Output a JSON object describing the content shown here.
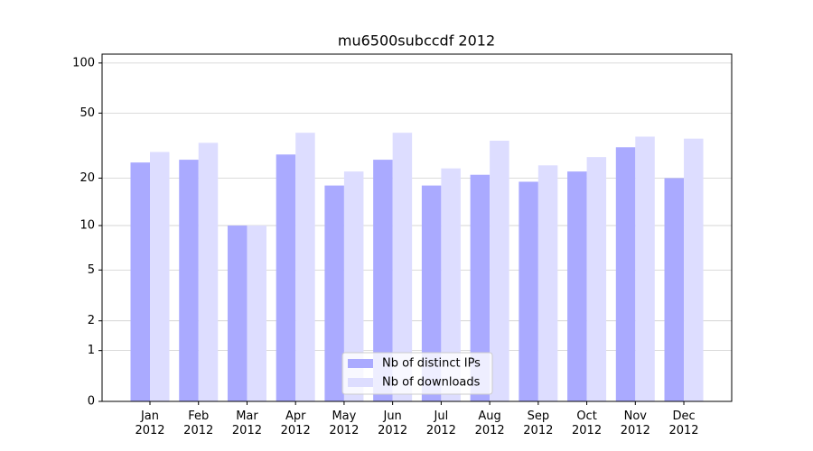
{
  "chart_data": {
    "type": "bar",
    "title": "mu6500subccdf 2012",
    "categories": [
      "Jan\n2012",
      "Feb\n2012",
      "Mar\n2012",
      "Apr\n2012",
      "May\n2012",
      "Jun\n2012",
      "Jul\n2012",
      "Aug\n2012",
      "Sep\n2012",
      "Oct\n2012",
      "Nov\n2012",
      "Dec\n2012"
    ],
    "series": [
      {
        "name": "Nb of distinct IPs",
        "color": "#aaaaff",
        "values": [
          25,
          26,
          10,
          28,
          18,
          26,
          18,
          21,
          19,
          22,
          31,
          20
        ]
      },
      {
        "name": "Nb of downloads",
        "color": "#ddddff",
        "values": [
          29,
          33,
          10,
          38,
          22,
          38,
          23,
          34,
          24,
          27,
          36,
          35
        ]
      }
    ],
    "yscale": "log1p",
    "ylim": [
      0,
      113
    ],
    "yticks": [
      0,
      1,
      2,
      5,
      10,
      20,
      50,
      100
    ],
    "grid": true,
    "legend": "lower center"
  }
}
